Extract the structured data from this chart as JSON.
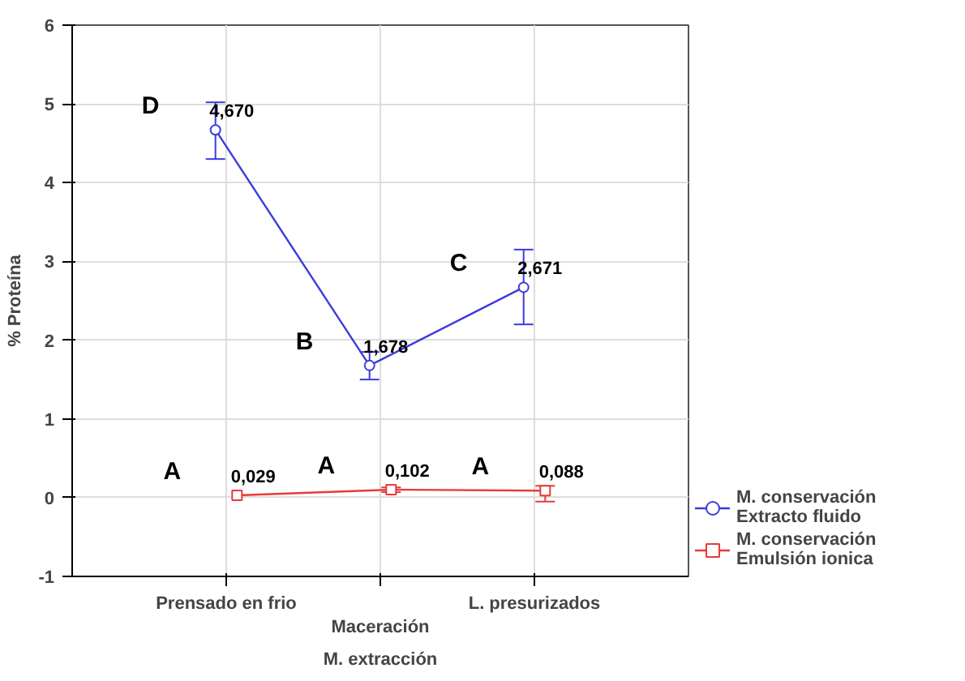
{
  "chart_data": {
    "type": "line",
    "xlabel": "M. extracción",
    "ylabel": "% Proteína",
    "categories": [
      "Prensado en frio",
      "Maceración",
      "L. presurizados"
    ],
    "series": [
      {
        "name": "M. conservación\nExtracto fluido",
        "color": "#3b3bdc",
        "marker": "circle",
        "values": [
          4.67,
          1.678,
          2.671
        ],
        "errors": [
          [
            4.3,
            5.02
          ],
          [
            1.5,
            1.85
          ],
          [
            2.2,
            3.15
          ]
        ],
        "value_labels": [
          "4,670",
          "1,678",
          "2,671"
        ]
      },
      {
        "name": "M. conservación\nEmulsión ionica",
        "color": "#e83a3a",
        "marker": "square",
        "values": [
          0.029,
          0.102,
          0.088
        ],
        "errors": [
          null,
          [
            0.07,
            0.13
          ],
          [
            -0.05,
            0.15
          ]
        ],
        "value_labels": [
          "0,029",
          "0,102",
          "0,088"
        ]
      }
    ],
    "annotations": [
      "D",
      "B",
      "C",
      "A",
      "A",
      "A"
    ],
    "ylim": [
      -1,
      6
    ],
    "yticks": [
      -1,
      0,
      1,
      2,
      3,
      4,
      5,
      6
    ],
    "grid": true,
    "legend": "bottom right",
    "line_style": "solid"
  }
}
